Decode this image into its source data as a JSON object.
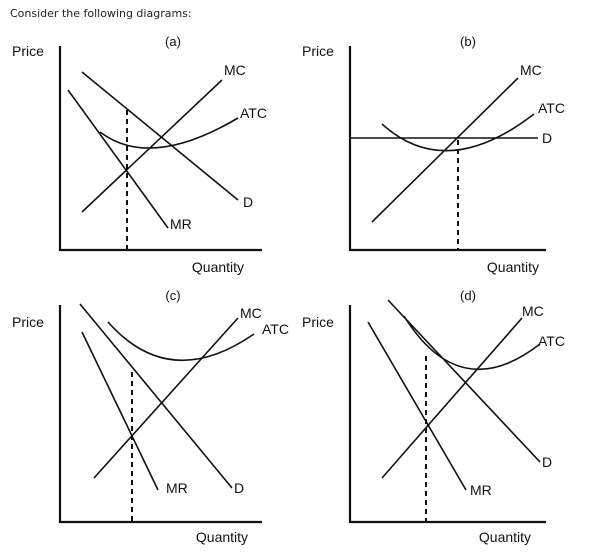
{
  "intro": "Consider the following diagrams:",
  "panels": [
    {
      "label": "(a)",
      "yaxis": "Price",
      "xaxis": "Quantity",
      "curves": {
        "mc": "MC",
        "atc": "ATC",
        "d": "D",
        "mr": "MR"
      }
    },
    {
      "label": "(b)",
      "yaxis": "Price",
      "xaxis": "Quantity",
      "curves": {
        "mc": "MC",
        "atc": "ATC",
        "d": "D"
      }
    },
    {
      "label": "(c)",
      "yaxis": "Price",
      "xaxis": "Quantity",
      "curves": {
        "mc": "MC",
        "atc": "ATC",
        "d": "D",
        "mr": "MR"
      }
    },
    {
      "label": "(d)",
      "yaxis": "Price",
      "xaxis": "Quantity",
      "curves": {
        "mc": "MC",
        "atc": "ATC",
        "d": "D",
        "mr": "MR"
      }
    }
  ]
}
